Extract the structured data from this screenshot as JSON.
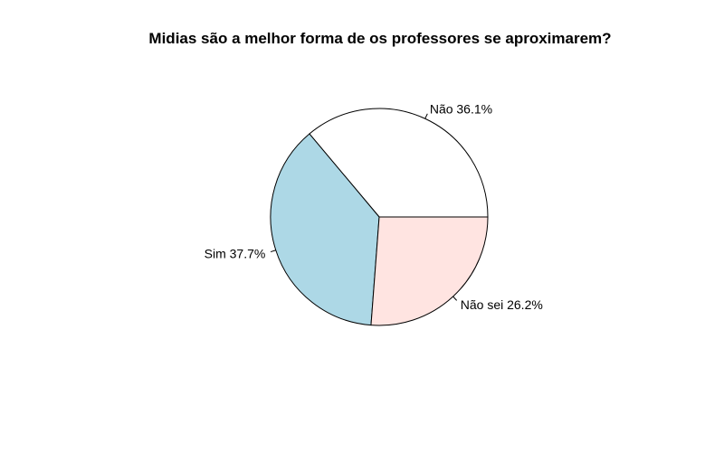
{
  "chart_data": {
    "type": "pie",
    "title": "Midias são a melhor forma de os professores se aproximarem?",
    "slices": [
      {
        "name": "Não",
        "value": 36.1,
        "label": "Não 36.1%",
        "color": "#ffffff"
      },
      {
        "name": "Sim",
        "value": 37.7,
        "label": "Sim 37.7%",
        "color": "#add8e6"
      },
      {
        "name": "Não sei",
        "value": 26.2,
        "label": "Não sei 26.2%",
        "color": "#ffe4e1"
      }
    ],
    "start_angle_deg": 0,
    "direction": "counterclockwise",
    "legend": "none"
  }
}
